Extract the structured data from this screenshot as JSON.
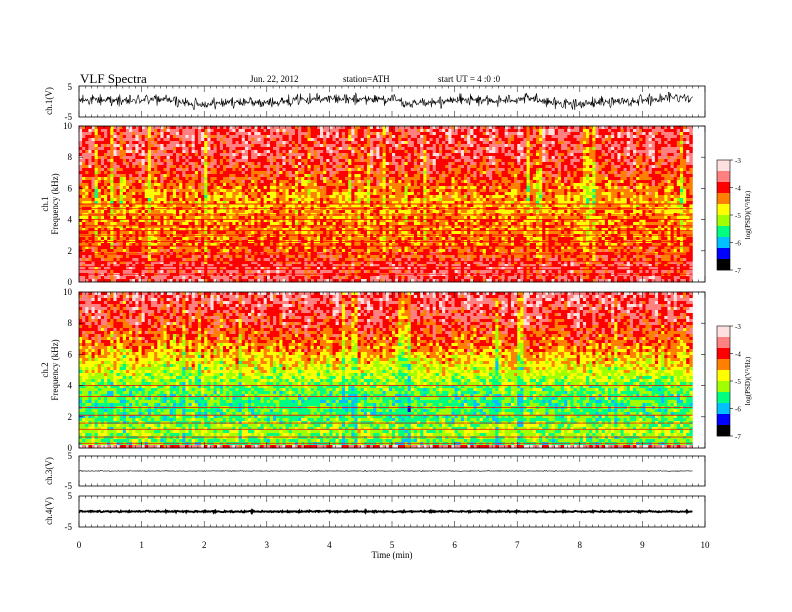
{
  "header": {
    "title": "VLF  Spectra",
    "date": "Jun. 22, 2012",
    "station": "station=ATH",
    "start": "start  UT  =   4  :0  :0"
  },
  "colors": {
    "spectrum_scale": [
      "#000000",
      "#0000ff",
      "#00c0ff",
      "#00ff80",
      "#a0ff00",
      "#ffff00",
      "#ff8000",
      "#ff0000",
      "#ff8080",
      "#ffe0e0"
    ],
    "waveform": "#000000"
  },
  "chart_data": [
    {
      "type": "line",
      "name": "ch1-waveform",
      "ylabel": "ch.1(V)",
      "ylim": [
        -5,
        5
      ],
      "yticks": [
        "5",
        "-5"
      ],
      "x_range_min": [
        0,
        9.8
      ],
      "description_values": {
        "typical_amplitude_v": 2.2
      }
    },
    {
      "type": "heatmap",
      "name": "ch1-spectrogram",
      "ylabel_top": "ch.1",
      "ylabel": "Frequency  (kHz)",
      "ylim": [
        0,
        10
      ],
      "yticks": [
        "0",
        "2",
        "4",
        "6",
        "8",
        "10"
      ],
      "x_range_min": [
        0,
        9.8
      ],
      "colorbar": {
        "label": "log(PSD)(V²/Hz)",
        "range": [
          -7,
          -3
        ],
        "ticks": [
          "-3",
          "-4",
          "-5",
          "-6",
          "-7"
        ]
      },
      "horizontal_lines_khz": [
        0.5,
        0.8,
        1.0,
        1.3,
        1.8,
        2.3,
        2.6,
        3.0,
        3.3,
        3.6,
        4.0,
        4.3,
        4.7,
        5.0
      ],
      "profile": [
        {
          "f_khz": 0.2,
          "level": -3.8
        },
        {
          "f_khz": 1.0,
          "level": -3.8
        },
        {
          "f_khz": 2.0,
          "level": -4.2
        },
        {
          "f_khz": 3.0,
          "level": -4.3
        },
        {
          "f_khz": 4.0,
          "level": -4.4
        },
        {
          "f_khz": 5.0,
          "level": -4.5
        },
        {
          "f_khz": 6.0,
          "level": -4.3
        },
        {
          "f_khz": 8.0,
          "level": -3.8
        },
        {
          "f_khz": 10.0,
          "level": -3.7
        }
      ]
    },
    {
      "type": "heatmap",
      "name": "ch2-spectrogram",
      "ylabel_top": "ch.2",
      "ylabel": "Frequency  (kHz)",
      "ylim": [
        0,
        10
      ],
      "yticks": [
        "0",
        "2",
        "4",
        "6",
        "8",
        "10"
      ],
      "x_range_min": [
        0,
        9.8
      ],
      "colorbar": {
        "label": "log(PSD)(V²/Hz)",
        "range": [
          -7,
          -3
        ],
        "ticks": [
          "-3",
          "-4",
          "-5",
          "-6",
          "-7"
        ]
      },
      "horizontal_lines_khz": [
        0.3,
        0.7,
        1.2,
        1.6,
        2.1,
        2.6,
        3.3,
        4.0
      ],
      "profile": [
        {
          "f_khz": 0.2,
          "level": -5.5
        },
        {
          "f_khz": 1.0,
          "level": -5.1
        },
        {
          "f_khz": 2.0,
          "level": -5.4
        },
        {
          "f_khz": 3.0,
          "level": -5.5
        },
        {
          "f_khz": 4.0,
          "level": -5.3
        },
        {
          "f_khz": 5.0,
          "level": -4.9
        },
        {
          "f_khz": 6.0,
          "level": -4.5
        },
        {
          "f_khz": 8.0,
          "level": -3.9
        },
        {
          "f_khz": 10.0,
          "level": -3.6
        }
      ]
    },
    {
      "type": "line",
      "name": "ch3-waveform",
      "ylabel": "ch.3(V)",
      "ylim": [
        -5,
        5
      ],
      "yticks": [
        "5",
        "-5"
      ],
      "x_range_min": [
        0,
        9.8
      ],
      "description_values": {
        "offset_v": 0,
        "typical_amplitude_v": 0.15
      }
    },
    {
      "type": "line",
      "name": "ch4-waveform",
      "ylabel": "ch.4(V)",
      "ylim": [
        -5,
        5
      ],
      "yticks": [
        "5",
        "-5"
      ],
      "x_range_min": [
        0,
        9.8
      ],
      "description_values": {
        "offset_v": 0,
        "typical_amplitude_v": 0.3
      }
    }
  ],
  "x_axis": {
    "label": "Time  (min)",
    "range": [
      0,
      10
    ],
    "ticks": [
      "0",
      "1",
      "2",
      "3",
      "4",
      "5",
      "6",
      "7",
      "8",
      "9",
      "10"
    ]
  }
}
